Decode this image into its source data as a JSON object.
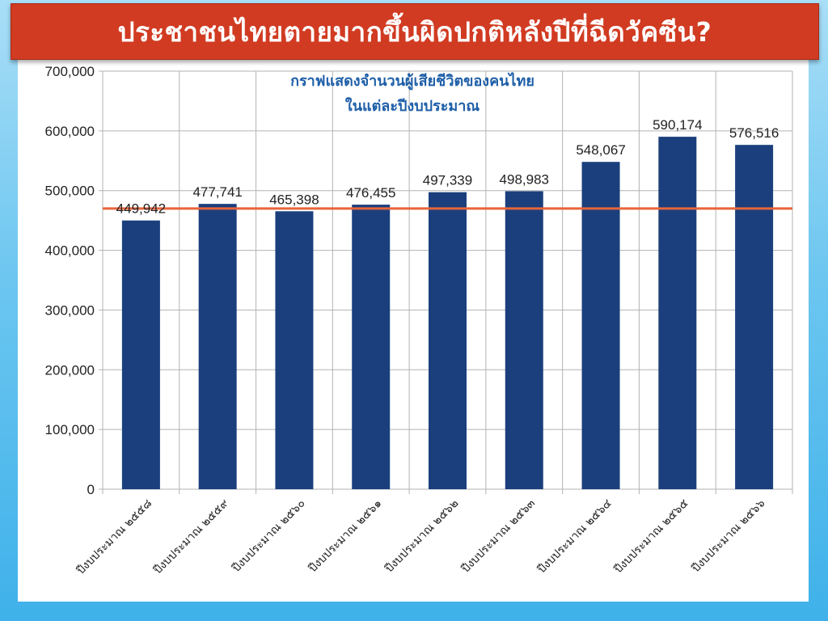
{
  "page_title": "ประชาชนไทยตายมากขึ้นผิดปกติหลังปีที่ฉีดวัคซีน?",
  "chart_data": {
    "type": "bar",
    "title_line1": "กราฟแสดงจำนวนผู้เสียชีวิตของคนไทย",
    "title_line2": "ในแต่ละปีงบประมาณ",
    "categories": [
      "ปีงบประมาณ ๒๕๕๘",
      "ปีงบประมาณ ๒๕๕๙",
      "ปีงบประมาณ ๒๕๖๐",
      "ปีงบประมาณ ๒๕๖๑",
      "ปีงบประมาณ ๒๕๖๒",
      "ปีงบประมาณ ๒๕๖๓",
      "ปีงบประมาณ ๒๕๖๔",
      "ปีงบประมาณ ๒๕๖๕",
      "ปีงบประมาณ ๒๕๖๖"
    ],
    "values": [
      449942,
      477741,
      465398,
      476455,
      497339,
      498983,
      548067,
      590174,
      576516
    ],
    "data_labels": [
      "449,942",
      "477,741",
      "465,398",
      "476,455",
      "497,339",
      "498,983",
      "548,067",
      "590,174",
      "576,516"
    ],
    "ylim": [
      0,
      700000
    ],
    "yticks": [
      0,
      100000,
      200000,
      300000,
      400000,
      500000,
      600000,
      700000
    ],
    "ytick_labels": [
      "0",
      "100,000",
      "200,000",
      "300,000",
      "400,000",
      "500,000",
      "600,000",
      "700,000"
    ],
    "reference_line": 470000,
    "bar_color": "#1b3f7d",
    "reference_line_color": "#e8643a",
    "title_color": "#1f5fa8",
    "grid": true
  }
}
